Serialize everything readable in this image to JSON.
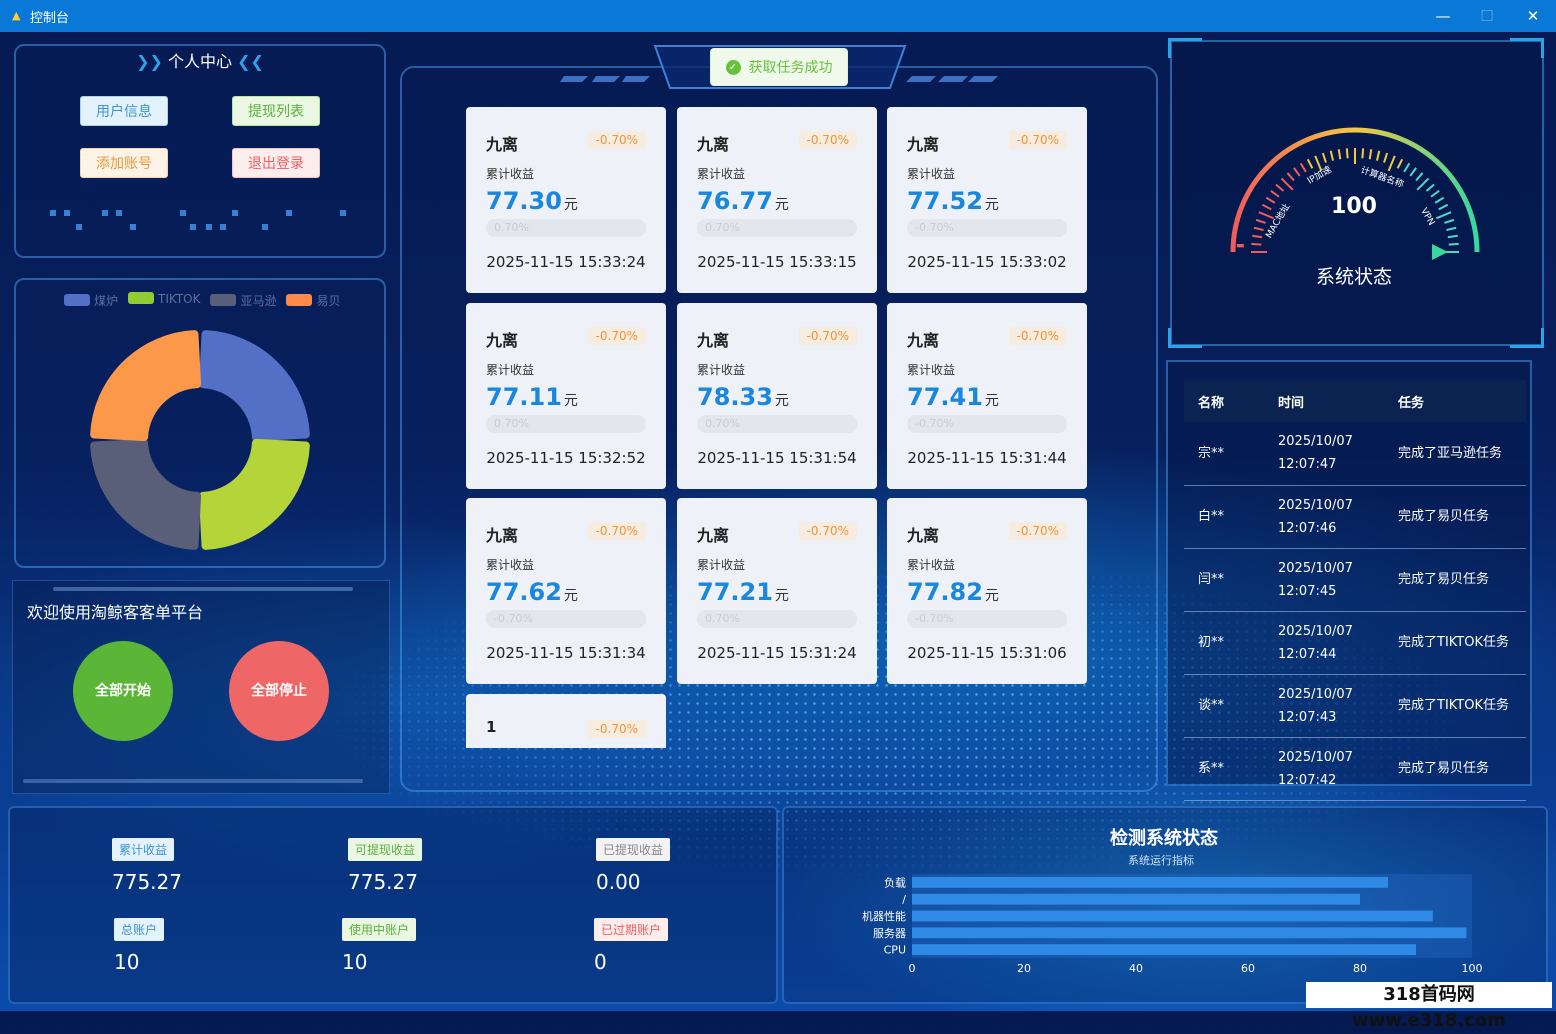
{
  "window": {
    "title": "控制台",
    "min": "—",
    "max": "☐",
    "close": "✕"
  },
  "personal": {
    "title": "个人中心",
    "left_arrows": "❯❯",
    "right_arrows": "❮❮",
    "buttons": {
      "user_info": "用户信息",
      "withdraw_list": "提现列表",
      "add_account": "添加账号",
      "logout": "退出登录"
    }
  },
  "legend": [
    {
      "label": "煤炉",
      "color": "#5470c6"
    },
    {
      "label": "TIKTOK",
      "color": "#91cc35"
    },
    {
      "label": "亚马逊",
      "color": "#5a5f79"
    },
    {
      "label": "易贝",
      "color": "#fc8a4a"
    }
  ],
  "donut": {
    "segments": [
      {
        "name": "煤炉",
        "value": 25,
        "color": "#5470c6"
      },
      {
        "name": "TIKTOK",
        "value": 25,
        "color": "#b4d43a"
      },
      {
        "name": "亚马逊",
        "value": 25,
        "color": "#5a5f79"
      },
      {
        "name": "易贝",
        "value": 25,
        "color": "#fc9849"
      }
    ]
  },
  "welcome": {
    "text": "欢迎使用淘鲸客客单平台",
    "start_all": "全部开始",
    "stop_all": "全部停止"
  },
  "toast": {
    "text": "获取任务成功",
    "icon": "check-circle-icon"
  },
  "cards": [
    {
      "name": "九离",
      "pct": "-0.70%",
      "label": "累计收益",
      "value": "77.30",
      "unit": "元",
      "bar": "0.70%",
      "time": "2025-11-15 15:33:24"
    },
    {
      "name": "九离",
      "pct": "-0.70%",
      "label": "累计收益",
      "value": "76.77",
      "unit": "元",
      "bar": "0.70%",
      "time": "2025-11-15 15:33:15"
    },
    {
      "name": "九离",
      "pct": "-0.70%",
      "label": "累计收益",
      "value": "77.52",
      "unit": "元",
      "bar": "-0.70%",
      "time": "2025-11-15 15:33:02"
    },
    {
      "name": "九离",
      "pct": "-0.70%",
      "label": "累计收益",
      "value": "77.11",
      "unit": "元",
      "bar": "0.70%",
      "time": "2025-11-15 15:32:52"
    },
    {
      "name": "九离",
      "pct": "-0.70%",
      "label": "累计收益",
      "value": "78.33",
      "unit": "元",
      "bar": "0.70%",
      "time": "2025-11-15 15:31:54"
    },
    {
      "name": "九离",
      "pct": "-0.70%",
      "label": "累计收益",
      "value": "77.41",
      "unit": "元",
      "bar": "-0.70%",
      "time": "2025-11-15 15:31:44"
    },
    {
      "name": "九离",
      "pct": "-0.70%",
      "label": "累计收益",
      "value": "77.62",
      "unit": "元",
      "bar": "-0.70%",
      "time": "2025-11-15 15:31:34"
    },
    {
      "name": "九离",
      "pct": "-0.70%",
      "label": "累计收益",
      "value": "77.21",
      "unit": "元",
      "bar": "0.70%",
      "time": "2025-11-15 15:31:24"
    },
    {
      "name": "九离",
      "pct": "-0.70%",
      "label": "累计收益",
      "value": "77.82",
      "unit": "元",
      "bar": "-0.70%",
      "time": "2025-11-15 15:31:06"
    }
  ],
  "partial_card": {
    "name": "1",
    "pct": "-0.70%"
  },
  "gauge": {
    "value": "100",
    "title": "系统状态",
    "labels": [
      "MAC地址",
      "IP加速",
      "计算器名称",
      "VPN"
    ]
  },
  "tasks": {
    "headers": [
      "名称",
      "时间",
      "任务"
    ],
    "rows": [
      {
        "name": "宗**",
        "date": "2025/10/07",
        "time": "12:07:47",
        "task": "完成了亚马逊任务"
      },
      {
        "name": "白**",
        "date": "2025/10/07",
        "time": "12:07:46",
        "task": "完成了易贝任务"
      },
      {
        "name": "闫**",
        "date": "2025/10/07",
        "time": "12:07:45",
        "task": "完成了易贝任务"
      },
      {
        "name": "初**",
        "date": "2025/10/07",
        "time": "12:07:44",
        "task": "完成了TIKTOK任务"
      },
      {
        "name": "谈**",
        "date": "2025/10/07",
        "time": "12:07:43",
        "task": "完成了TIKTOK任务"
      },
      {
        "name": "系**",
        "date": "2025/10/07",
        "time": "12:07:42",
        "task": "完成了易贝任务"
      }
    ]
  },
  "stats": {
    "total_income_label": "累计收益",
    "total_income": "775.27",
    "withdrawable_label": "可提现收益",
    "withdrawable": "775.27",
    "withdrawn_label": "已提现收益",
    "withdrawn": "0.00",
    "total_accounts_label": "总账户",
    "total_accounts": "10",
    "active_accounts_label": "使用中账户",
    "active_accounts": "10",
    "expired_accounts_label": "已过期账户",
    "expired_accounts": "0"
  },
  "chart_data": {
    "type": "bar",
    "orientation": "horizontal",
    "title": "检测系统状态",
    "subtitle": "系统运行指标",
    "categories": [
      "负载",
      "/",
      "机器性能",
      "服务器",
      "CPU"
    ],
    "values": [
      85,
      80,
      93,
      99,
      90
    ],
    "xlim": [
      0,
      100
    ],
    "xticks": [
      "0",
      "20",
      "40",
      "60",
      "80",
      "100"
    ]
  },
  "watermark": "318首码网 www.e318.com"
}
